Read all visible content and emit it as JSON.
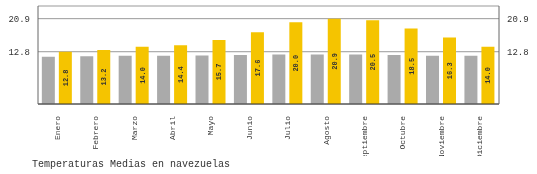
{
  "chart_data": {
    "type": "bar",
    "title": "Temperaturas Medias en navezuelas",
    "categories": [
      "Enero",
      "Febrero",
      "Marzo",
      "Abril",
      "Mayo",
      "Junio",
      "Julio",
      "Agosto",
      "Septiembre",
      "Octubre",
      "Noviembre",
      "Diciembre"
    ],
    "series": [
      {
        "color": "#AAAAAA",
        "values": [
          11.6,
          11.7,
          11.8,
          11.8,
          11.9,
          12.0,
          12.1,
          12.1,
          12.1,
          12.0,
          11.8,
          11.8
        ]
      },
      {
        "color": "#F5C400",
        "values": [
          12.8,
          13.2,
          14.0,
          14.4,
          15.7,
          17.6,
          20.0,
          20.9,
          20.5,
          18.5,
          16.3,
          14.0
        ],
        "value_labels": [
          "12.8",
          "13.2",
          "14.0",
          "14.4",
          "15.7",
          "17.6",
          "20.0",
          "20.9",
          "20.5",
          "18.5",
          "16.3",
          "14.0"
        ],
        "data_labels": true
      }
    ],
    "ylim": [
      0,
      24
    ],
    "yticks": [
      12.8,
      20.9
    ],
    "y2lim": [
      0,
      24
    ],
    "y2ticks": [
      12.8,
      20.9
    ],
    "grid": true
  }
}
